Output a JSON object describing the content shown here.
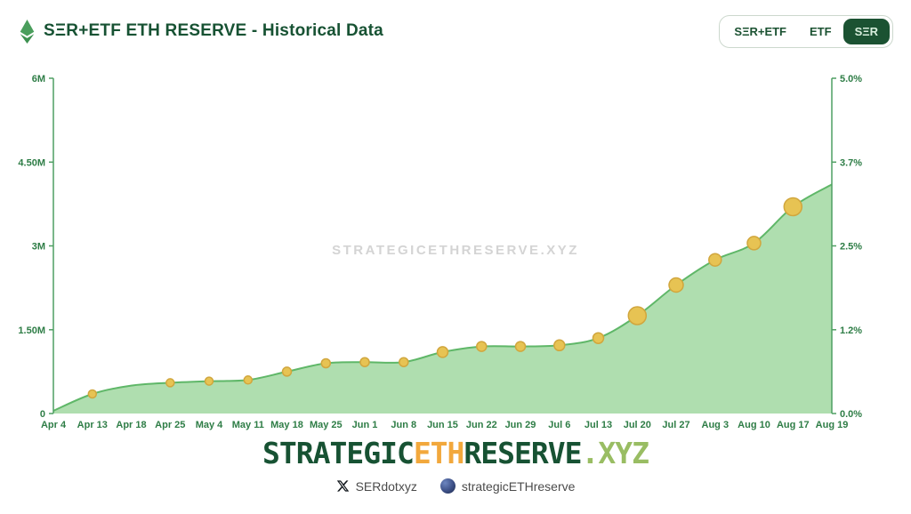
{
  "header": {
    "title": "SΞR+ETF ETH RESERVE - Historical Data",
    "toggle": {
      "options": [
        {
          "label": "SΞR+ETF",
          "selected": false
        },
        {
          "label": "ETF",
          "selected": false
        },
        {
          "label": "SΞR",
          "selected": true
        }
      ]
    }
  },
  "watermark": "STRATEGICETHRESERVE.XYZ",
  "wordmark": {
    "part1": "STRATEGIC",
    "part2": "ETH",
    "part3": "RESERVE",
    "part4": ".XYZ"
  },
  "footer": {
    "x_handle": "SERdotxyz",
    "globe_handle": "strategicETHreserve"
  },
  "chart_data": {
    "type": "area",
    "title": "SΞR+ETF ETH RESERVE - Historical Data",
    "categories": [
      "Apr 4",
      "Apr 13",
      "Apr 18",
      "Apr 25",
      "May 4",
      "May 11",
      "May 18",
      "May 25",
      "Jun 1",
      "Jun 8",
      "Jun 15",
      "Jun 22",
      "Jun 29",
      "Jul 6",
      "Jul 13",
      "Jul 20",
      "Jul 27",
      "Aug 3",
      "Aug 10",
      "Aug 17",
      "Aug 19"
    ],
    "series": [
      {
        "name": "ETH Reserve",
        "values": [
          50000,
          350000,
          500000,
          550000,
          580000,
          600000,
          750000,
          900000,
          920000,
          920000,
          1100000,
          1200000,
          1200000,
          1220000,
          1350000,
          1750000,
          2300000,
          2750000,
          3050000,
          3700000,
          4100000
        ]
      }
    ],
    "marker_radii": [
      0,
      4.5,
      0,
      4.5,
      4.5,
      4.5,
      5,
      5,
      5,
      5,
      6,
      5.5,
      5.5,
      6,
      6,
      10,
      8,
      7,
      7.5,
      10,
      0
    ],
    "y_axis_left": {
      "labels": [
        "6M",
        "4.50M",
        "3M",
        "1.50M",
        "0"
      ],
      "min": 0,
      "max": 6000000
    },
    "y_axis_right": {
      "labels": [
        "5.0%",
        "3.7%",
        "2.5%",
        "1.2%",
        "0.0%"
      ],
      "min": 0,
      "max": 5
    },
    "grid": false,
    "legend": "none",
    "colors": {
      "area": "#abdcab",
      "line": "#5fb768",
      "marker": "#e7c353",
      "marker_stroke": "#d1a63d",
      "axis": "#4f9f63",
      "axis_text": "#2e7d46"
    }
  }
}
